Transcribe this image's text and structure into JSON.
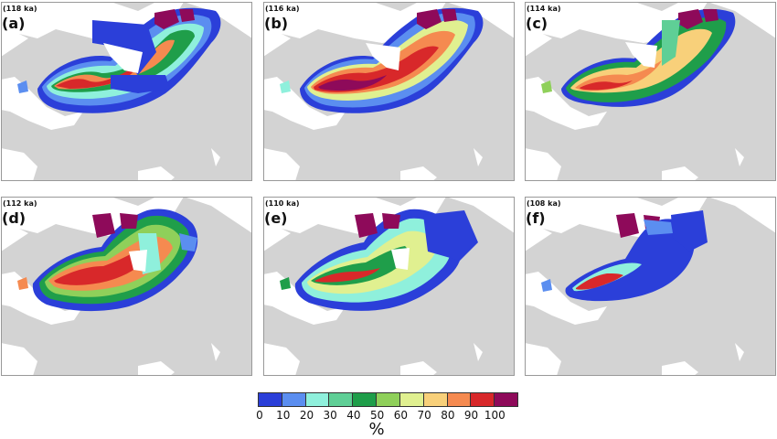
{
  "panels": [
    {
      "age": "(118 ka)",
      "label": "(a)"
    },
    {
      "age": "(116 ka)",
      "label": "(b)"
    },
    {
      "age": "(114 ka)",
      "label": "(c)"
    },
    {
      "age": "(112 ka)",
      "label": "(d)"
    },
    {
      "age": "(110 ka)",
      "label": "(e)"
    },
    {
      "age": "(108 ka)",
      "label": "(f)"
    }
  ],
  "colorbar": {
    "ticks": [
      "0",
      "10",
      "20",
      "30",
      "40",
      "50",
      "60",
      "70",
      "80",
      "90",
      "100"
    ],
    "unit": "%",
    "colors": [
      "#2b3fd9",
      "#5b8ef0",
      "#8ff0dc",
      "#5fcf96",
      "#1f9e4a",
      "#8fd05a",
      "#e0f090",
      "#f8d07a",
      "#f58a50",
      "#d8282a",
      "#8e0a5a"
    ]
  },
  "map_colors": {
    "land": "#d3d3d3",
    "ocean": "#ffffff"
  }
}
